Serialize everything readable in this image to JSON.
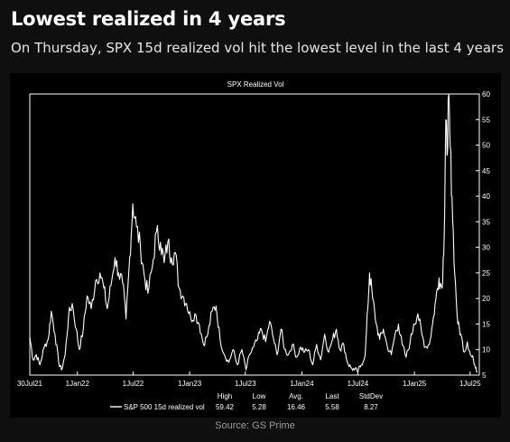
{
  "header": {
    "title": "Lowest realized in 4 years",
    "subtitle": "On Thursday, SPX 15d realized vol hit the lowest level in the last 4 years"
  },
  "footer": {
    "source": "Source: GS Prime"
  },
  "colors": {
    "background": "#0f0f10",
    "plot_background": "#000000",
    "line": "#ffffff",
    "axis": "#ffffff"
  },
  "chart_data": {
    "type": "line",
    "title": "SPX Realized Vol",
    "xlabel": "",
    "ylabel": "",
    "grid": false,
    "y_axis_side": "right",
    "ylim": [
      5,
      60
    ],
    "yticks": [
      5,
      10,
      15,
      20,
      25,
      30,
      35,
      40,
      45,
      50,
      55,
      60
    ],
    "xlim": [
      "2021-07-30",
      "2025-07-31"
    ],
    "xticks": [
      {
        "date": "2021-07-30",
        "label": "30Jul21"
      },
      {
        "date": "2022-01-01",
        "label": "1Jan22"
      },
      {
        "date": "2022-07-01",
        "label": "1Jul22"
      },
      {
        "date": "2023-01-01",
        "label": "1Jan23"
      },
      {
        "date": "2023-07-01",
        "label": "1Jul23"
      },
      {
        "date": "2024-01-01",
        "label": "1Jan24"
      },
      {
        "date": "2024-07-01",
        "label": "1Jul24"
      },
      {
        "date": "2025-01-01",
        "label": "1Jan25"
      },
      {
        "date": "2025-07-01",
        "label": "1Jul25"
      }
    ],
    "legend": {
      "placement": "bottom",
      "series_label": "S&P 500 15d realized vol",
      "stats_headers": [
        "High",
        "Low",
        "Avg.",
        "Last",
        "StdDev"
      ],
      "stats_values": [
        "59.42",
        "5.28",
        "16.46",
        "5.58",
        "8.27"
      ]
    },
    "series": [
      {
        "name": "S&P 500 15d realized vol",
        "points": [
          [
            "2021-07-30",
            12.5
          ],
          [
            "2021-08-10",
            8.0
          ],
          [
            "2021-08-20",
            9.0
          ],
          [
            "2021-09-01",
            7.0
          ],
          [
            "2021-09-15",
            10.5
          ],
          [
            "2021-09-28",
            12.0
          ],
          [
            "2021-10-08",
            17.5
          ],
          [
            "2021-10-20",
            13.0
          ],
          [
            "2021-11-01",
            7.5
          ],
          [
            "2021-11-10",
            6.0
          ],
          [
            "2021-11-22",
            9.0
          ],
          [
            "2021-12-03",
            16.5
          ],
          [
            "2021-12-15",
            19.0
          ],
          [
            "2021-12-28",
            14.0
          ],
          [
            "2022-01-07",
            10.0
          ],
          [
            "2022-01-20",
            14.0
          ],
          [
            "2022-02-01",
            20.5
          ],
          [
            "2022-02-15",
            18.0
          ],
          [
            "2022-03-01",
            23.5
          ],
          [
            "2022-03-15",
            25.0
          ],
          [
            "2022-03-28",
            22.0
          ],
          [
            "2022-04-08",
            18.0
          ],
          [
            "2022-04-20",
            22.5
          ],
          [
            "2022-05-03",
            28.0
          ],
          [
            "2022-05-15",
            25.0
          ],
          [
            "2022-05-28",
            23.0
          ],
          [
            "2022-06-08",
            16.0
          ],
          [
            "2022-06-20",
            28.0
          ],
          [
            "2022-06-30",
            38.5
          ],
          [
            "2022-07-12",
            34.0
          ],
          [
            "2022-07-25",
            30.0
          ],
          [
            "2022-08-05",
            25.0
          ],
          [
            "2022-08-18",
            21.0
          ],
          [
            "2022-09-01",
            26.0
          ],
          [
            "2022-09-15",
            33.0
          ],
          [
            "2022-09-28",
            31.0
          ],
          [
            "2022-10-10",
            27.0
          ],
          [
            "2022-10-22",
            31.0
          ],
          [
            "2022-11-03",
            28.0
          ],
          [
            "2022-11-15",
            29.0
          ],
          [
            "2022-11-28",
            22.0
          ],
          [
            "2022-12-10",
            20.5
          ],
          [
            "2022-12-22",
            19.0
          ],
          [
            "2023-01-05",
            16.0
          ],
          [
            "2023-01-18",
            17.0
          ],
          [
            "2023-02-01",
            15.0
          ],
          [
            "2023-02-15",
            11.0
          ],
          [
            "2023-03-01",
            13.0
          ],
          [
            "2023-03-15",
            17.5
          ],
          [
            "2023-03-28",
            18.5
          ],
          [
            "2023-04-10",
            12.0
          ],
          [
            "2023-04-24",
            9.0
          ],
          [
            "2023-05-08",
            7.5
          ],
          [
            "2023-05-22",
            10.0
          ],
          [
            "2023-06-05",
            7.0
          ],
          [
            "2023-06-20",
            10.0
          ],
          [
            "2023-07-03",
            6.0
          ],
          [
            "2023-07-15",
            9.0
          ],
          [
            "2023-07-28",
            10.5
          ],
          [
            "2023-08-10",
            12.0
          ],
          [
            "2023-08-22",
            14.0
          ],
          [
            "2023-09-05",
            11.5
          ],
          [
            "2023-09-18",
            15.5
          ],
          [
            "2023-10-01",
            12.0
          ],
          [
            "2023-10-12",
            9.0
          ],
          [
            "2023-10-25",
            14.0
          ],
          [
            "2023-11-06",
            10.0
          ],
          [
            "2023-11-18",
            9.0
          ],
          [
            "2023-12-01",
            11.0
          ],
          [
            "2023-12-15",
            8.5
          ],
          [
            "2023-12-28",
            10.5
          ],
          [
            "2024-01-10",
            9.5
          ],
          [
            "2024-01-22",
            10.0
          ],
          [
            "2024-02-05",
            7.0
          ],
          [
            "2024-02-18",
            11.0
          ],
          [
            "2024-03-02",
            8.0
          ],
          [
            "2024-03-15",
            13.0
          ],
          [
            "2024-03-28",
            9.5
          ],
          [
            "2024-04-10",
            12.0
          ],
          [
            "2024-04-22",
            14.0
          ],
          [
            "2024-05-04",
            10.0
          ],
          [
            "2024-05-16",
            11.0
          ],
          [
            "2024-05-28",
            7.5
          ],
          [
            "2024-06-08",
            6.5
          ],
          [
            "2024-06-20",
            6.0
          ],
          [
            "2024-07-02",
            5.8
          ],
          [
            "2024-07-12",
            7.0
          ],
          [
            "2024-07-25",
            9.0
          ],
          [
            "2024-08-02",
            18.0
          ],
          [
            "2024-08-08",
            25.0
          ],
          [
            "2024-08-18",
            20.0
          ],
          [
            "2024-08-30",
            15.0
          ],
          [
            "2024-09-10",
            12.0
          ],
          [
            "2024-09-22",
            14.0
          ],
          [
            "2024-10-05",
            10.5
          ],
          [
            "2024-10-18",
            9.0
          ],
          [
            "2024-10-30",
            13.0
          ],
          [
            "2024-11-10",
            15.0
          ],
          [
            "2024-11-22",
            11.0
          ],
          [
            "2024-12-05",
            8.5
          ],
          [
            "2024-12-18",
            11.5
          ],
          [
            "2024-12-30",
            15.0
          ],
          [
            "2025-01-12",
            17.0
          ],
          [
            "2025-01-25",
            13.0
          ],
          [
            "2025-02-05",
            10.5
          ],
          [
            "2025-02-18",
            11.0
          ],
          [
            "2025-03-01",
            15.0
          ],
          [
            "2025-03-12",
            20.0
          ],
          [
            "2025-03-22",
            24.0
          ],
          [
            "2025-04-01",
            22.0
          ],
          [
            "2025-04-08",
            33.0
          ],
          [
            "2025-04-13",
            55.0
          ],
          [
            "2025-04-17",
            48.0
          ],
          [
            "2025-04-22",
            59.4
          ],
          [
            "2025-04-26",
            52.0
          ],
          [
            "2025-05-03",
            40.0
          ],
          [
            "2025-05-12",
            25.0
          ],
          [
            "2025-05-22",
            15.0
          ],
          [
            "2025-06-01",
            13.0
          ],
          [
            "2025-06-12",
            9.5
          ],
          [
            "2025-06-22",
            11.5
          ],
          [
            "2025-07-02",
            9.0
          ],
          [
            "2025-07-12",
            8.0
          ],
          [
            "2025-07-20",
            6.5
          ],
          [
            "2025-07-25",
            5.6
          ]
        ]
      }
    ]
  }
}
